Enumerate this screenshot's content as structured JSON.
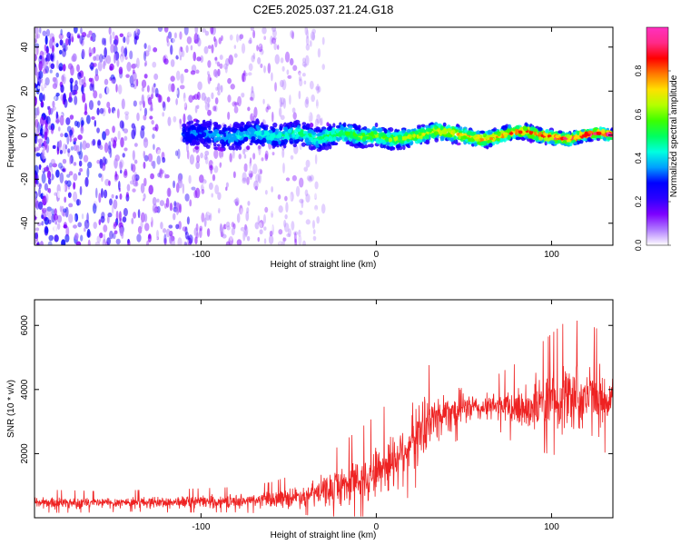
{
  "title": "C2E5.2025.037.21.24.G18",
  "chart_data": [
    {
      "type": "heatmap",
      "xlabel": "Height of straight line (km)",
      "ylabel": "Frequency (Hz)",
      "xlim": [
        -195,
        135
      ],
      "ylim": [
        -50,
        49
      ],
      "x_ticks": [
        -100,
        0,
        100
      ],
      "y_ticks": [
        -40,
        -20,
        0,
        20,
        40
      ],
      "colorbar": {
        "label": "Normalized spectral amplitude",
        "range": [
          0.0,
          1.0
        ],
        "ticks": [
          "0.0",
          "0.2",
          "0.4",
          "0.6",
          "0.8"
        ],
        "tick_values": [
          0.0,
          0.2,
          0.4,
          0.6,
          0.8
        ],
        "colors": [
          "#ffffff",
          "#b07cff",
          "#7d00ff",
          "#2b00ff",
          "#0000ff",
          "#00a0ff",
          "#00ffe0",
          "#00ff60",
          "#3cff00",
          "#b4ff00",
          "#ffe000",
          "#ff7a00",
          "#ff0000",
          "#ff2a88",
          "#ff30c0"
        ]
      },
      "signal_trace": {
        "x_start": -110,
        "x_end": 135,
        "frequency": [
          0,
          1,
          0,
          -1,
          0,
          1,
          -1,
          0,
          1,
          -2,
          0,
          1,
          -1,
          0,
          -2,
          -1,
          0,
          2,
          1,
          0,
          -2,
          -1,
          1,
          2,
          0,
          -1,
          -2,
          0,
          1,
          0
        ],
        "noise_extent_x": -30
      }
    },
    {
      "type": "line",
      "xlabel": "Height of straight line (km)",
      "ylabel": "SNR (10 * v/v)",
      "xlim": [
        -195,
        135
      ],
      "ylim": [
        0,
        6800
      ],
      "x_ticks": [
        -100,
        0,
        100
      ],
      "y_ticks": [
        2000,
        4000,
        6000
      ],
      "series": [
        {
          "name": "SNR",
          "color": "#ee2222",
          "x": [
            -195,
            -180,
            -160,
            -140,
            -120,
            -100,
            -80,
            -60,
            -40,
            -30,
            -20,
            -10,
            0,
            10,
            20,
            30,
            40,
            50,
            60,
            70,
            80,
            90,
            100,
            110,
            120,
            130,
            135
          ],
          "mean": [
            480,
            470,
            460,
            490,
            480,
            500,
            520,
            560,
            700,
            820,
            1000,
            1200,
            1450,
            1800,
            2400,
            3000,
            3300,
            3450,
            3400,
            3500,
            3400,
            3500,
            3650,
            3800,
            3750,
            3700,
            3700
          ],
          "spread": [
            180,
            180,
            170,
            170,
            180,
            190,
            200,
            250,
            350,
            450,
            600,
            700,
            800,
            900,
            950,
            800,
            650,
            500,
            350,
            450,
            650,
            800,
            950,
            1100,
            1050,
            950,
            900
          ]
        }
      ]
    }
  ]
}
